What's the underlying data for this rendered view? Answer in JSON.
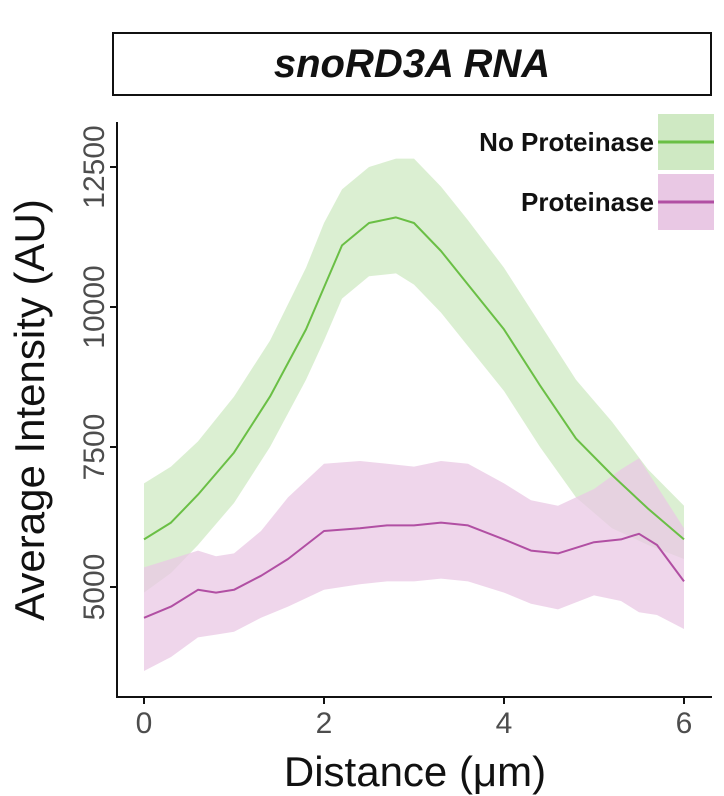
{
  "chart_data": {
    "type": "line",
    "title": "snoRD3A RNA",
    "xlabel": "Distance (μm)",
    "ylabel": "Average Intensity (AU)",
    "xlim": [
      -0.3,
      6.3
    ],
    "ylim": [
      3200,
      13300
    ],
    "xticks": [
      0,
      2,
      4,
      6
    ],
    "xtick_labels": [
      "0",
      "2",
      "4",
      "6"
    ],
    "yticks": [
      5000,
      7500,
      10000,
      12500
    ],
    "ytick_labels": [
      "5000",
      "7500",
      "10000",
      "12500"
    ],
    "grid": false,
    "legend_position": "top-right",
    "series": [
      {
        "name": "No Proteinase",
        "color": "#6abf45",
        "band_color": "#cfe9c3",
        "x": [
          0,
          0.3,
          0.6,
          1.0,
          1.4,
          1.8,
          2.0,
          2.2,
          2.5,
          2.8,
          3.0,
          3.3,
          3.6,
          4.0,
          4.4,
          4.8,
          5.2,
          5.6,
          6.0
        ],
        "y": [
          5850,
          6150,
          6650,
          7400,
          8400,
          9600,
          10350,
          11100,
          11500,
          11600,
          11500,
          11000,
          10400,
          9600,
          8600,
          7650,
          7000,
          6400,
          5850
        ],
        "upper": [
          6850,
          7150,
          7600,
          8400,
          9400,
          10700,
          11500,
          12100,
          12500,
          12650,
          12650,
          12150,
          11550,
          10700,
          9700,
          8700,
          7950,
          7100,
          6450
        ],
        "lower": [
          4900,
          5250,
          5750,
          6500,
          7500,
          8700,
          9400,
          10150,
          10550,
          10600,
          10400,
          9900,
          9300,
          8500,
          7500,
          6600,
          6050,
          5750,
          5500
        ]
      },
      {
        "name": "Proteinase",
        "color": "#b14fa3",
        "band_color": "#e9c8e4",
        "x": [
          0,
          0.3,
          0.6,
          0.8,
          1.0,
          1.3,
          1.6,
          2.0,
          2.4,
          2.7,
          3.0,
          3.3,
          3.6,
          4.0,
          4.3,
          4.6,
          5.0,
          5.3,
          5.5,
          5.7,
          6.0
        ],
        "y": [
          4450,
          4650,
          4950,
          4900,
          4950,
          5200,
          5500,
          6000,
          6050,
          6100,
          6100,
          6150,
          6100,
          5850,
          5650,
          5600,
          5800,
          5850,
          5950,
          5750,
          5100
        ],
        "upper": [
          5350,
          5500,
          5650,
          5550,
          5600,
          6000,
          6600,
          7200,
          7250,
          7200,
          7150,
          7250,
          7200,
          6850,
          6550,
          6450,
          6750,
          7100,
          7300,
          6800,
          6050
        ],
        "lower": [
          3500,
          3750,
          4100,
          4150,
          4200,
          4450,
          4650,
          4950,
          5050,
          5100,
          5100,
          5150,
          5100,
          4900,
          4700,
          4600,
          4850,
          4750,
          4550,
          4500,
          4250
        ]
      }
    ]
  }
}
